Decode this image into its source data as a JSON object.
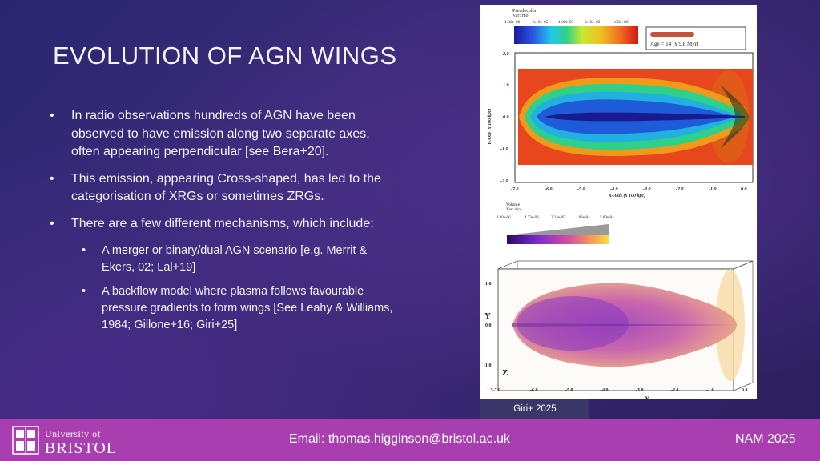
{
  "slide": {
    "title": "EVOLUTION OF AGN WINGS",
    "bullets": [
      {
        "text": "In radio observations hundreds of AGN have been observed to have emission along two separate axes, often appearing perpendicular [see Bera+20]."
      },
      {
        "text": "This emission, appearing Cross-shaped, has led to the categorisation of XRGs or sometimes ZRGs."
      },
      {
        "text": "There are a few different mechanisms, which include:"
      }
    ],
    "sub_bullets": [
      {
        "text": " A merger or binary/dual AGN scenario [e.g. Merrit & Ekers, 02; Lal+19]"
      },
      {
        "text": "A backflow model where plasma follows favourable pressure gradients to form wings [See Leahy & Williams, 1984; Gillone+16; Giri+25]"
      }
    ],
    "bullet_glyph": "•"
  },
  "figure": {
    "caption": "Giri+ 2025",
    "top_plot": {
      "legend_title": "Pseudocolor",
      "legend_var": "Var: rho",
      "colorbar_ticks": [
        "1.00e-06",
        "3.16e-05",
        "1.00e-03",
        "3.16e-02",
        "1.00e+00"
      ],
      "age_label": "Age = 14 (x 9.8 Myr)",
      "y_axis_label": "Y-Axis (x 100 kpc)",
      "x_axis_label": "X-Axis (x 100 kpc)",
      "y_ticks": [
        "2.0",
        "1.0",
        "0.0",
        "-1.0",
        "-2.0"
      ],
      "x_ticks": [
        "-7.0",
        "-6.0",
        "-5.0",
        "-4.0",
        "-3.0",
        "-2.0",
        "-1.0",
        "0.0"
      ]
    },
    "volume_legend": {
      "title": "Volume",
      "var": "Var: rho",
      "ticks": [
        "1.00e-06",
        "4.73e-06",
        "2.24e-05",
        "1.06e-04",
        "5.00e-04"
      ]
    },
    "bottom_plot": {
      "y_label": "Y",
      "z_label": "Z",
      "x_label": "X",
      "y_ticks": [
        "1.0",
        "0.0",
        "-1.0"
      ],
      "x_ticks": [
        "1.5-7.0",
        "-6.0",
        "-5.0",
        "-4.0",
        "-3.0",
        "-2.0",
        "-1.0",
        "0.0"
      ]
    }
  },
  "footer": {
    "logo_line1": "University of",
    "logo_line2": "BRISTOL",
    "email": "Email: thomas.higginson@bristol.ac.uk",
    "event": "NAM 2025"
  },
  "colors": {
    "background": "#302670",
    "footer": "#a93eb0",
    "caption_bg": "#3a3669"
  }
}
